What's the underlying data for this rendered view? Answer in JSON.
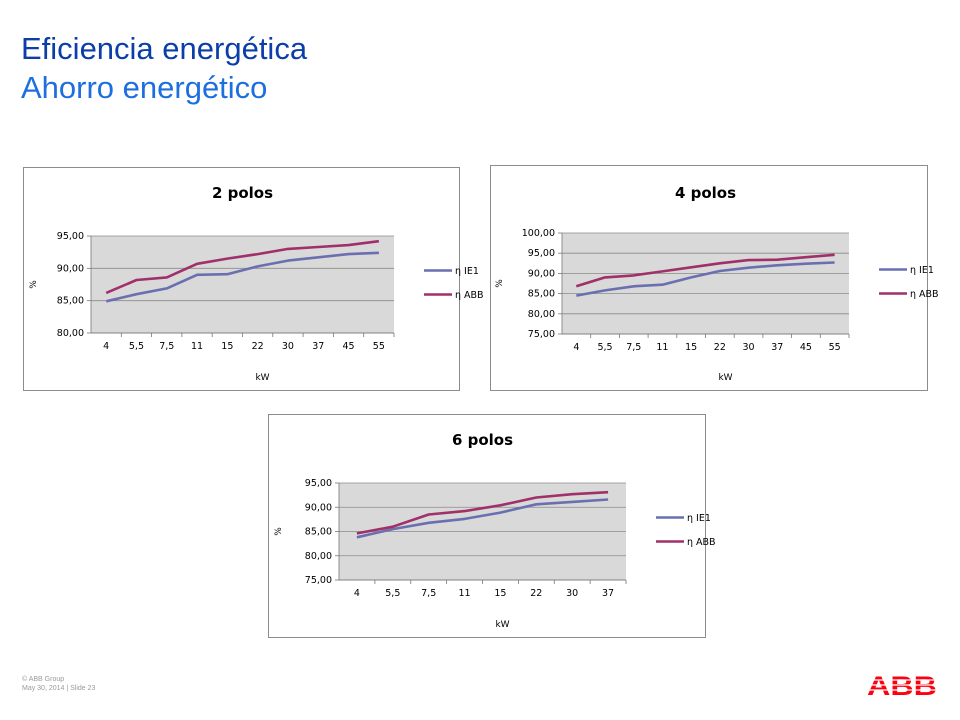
{
  "slide": {
    "title": "Eficiencia energética",
    "subtitle": "Ahorro energético",
    "footer_line1": "© ABB Group",
    "footer_line2": "May 30, 2014 | Slide 23",
    "logo_text": "ABB",
    "colors": {
      "title": "#0b3ea8",
      "subtitle": "#1d6fe0",
      "logo": "#ff000f"
    }
  },
  "chart_data": [
    {
      "type": "line",
      "title": "2 polos",
      "xlabel": "kW",
      "ylabel": "%",
      "categories": [
        "4",
        "5,5",
        "7,5",
        "11",
        "15",
        "22",
        "30",
        "37",
        "45",
        "55"
      ],
      "ylim": [
        80,
        95
      ],
      "yticks": [
        "80,00",
        "85,00",
        "90,00",
        "95,00"
      ],
      "grid": true,
      "legend_position": "right",
      "series": [
        {
          "name": "η IE1",
          "color": "#6a6fb0",
          "values": [
            84.9,
            86.0,
            86.9,
            89.0,
            89.1,
            90.3,
            91.2,
            91.7,
            92.2,
            92.4
          ]
        },
        {
          "name": "η ABB",
          "color": "#a0306a",
          "values": [
            86.2,
            88.2,
            88.6,
            90.7,
            91.5,
            92.2,
            93.0,
            93.3,
            93.6,
            94.2
          ]
        }
      ]
    },
    {
      "type": "line",
      "title": "4 polos",
      "xlabel": "kW",
      "ylabel": "%",
      "categories": [
        "4",
        "5,5",
        "7,5",
        "11",
        "15",
        "22",
        "30",
        "37",
        "45",
        "55"
      ],
      "ylim": [
        75,
        100
      ],
      "yticks": [
        "75,00",
        "80,00",
        "85,00",
        "90,00",
        "95,00",
        "100,00"
      ],
      "grid": true,
      "legend_position": "right",
      "series": [
        {
          "name": "η IE1",
          "color": "#6a6fb0",
          "values": [
            84.5,
            85.8,
            86.8,
            87.2,
            89.0,
            90.6,
            91.4,
            92.0,
            92.4,
            92.7
          ]
        },
        {
          "name": "η ABB",
          "color": "#a0306a",
          "values": [
            86.8,
            89.0,
            89.5,
            90.5,
            91.5,
            92.5,
            93.3,
            93.4,
            94.0,
            94.6
          ]
        }
      ]
    },
    {
      "type": "line",
      "title": "6 polos",
      "xlabel": "kW",
      "ylabel": "%",
      "categories": [
        "4",
        "5,5",
        "7,5",
        "11",
        "15",
        "22",
        "30",
        "37"
      ],
      "ylim": [
        75,
        95
      ],
      "yticks": [
        "75,00",
        "80,00",
        "85,00",
        "90,00",
        "95,00"
      ],
      "grid": true,
      "legend_position": "right",
      "series": [
        {
          "name": "η IE1",
          "color": "#6a6fb0",
          "values": [
            83.8,
            85.5,
            86.8,
            87.6,
            88.9,
            90.6,
            91.1,
            91.6
          ]
        },
        {
          "name": "η ABB",
          "color": "#a0306a",
          "values": [
            84.6,
            86.0,
            88.5,
            89.2,
            90.4,
            92.0,
            92.7,
            93.1
          ]
        }
      ]
    }
  ]
}
